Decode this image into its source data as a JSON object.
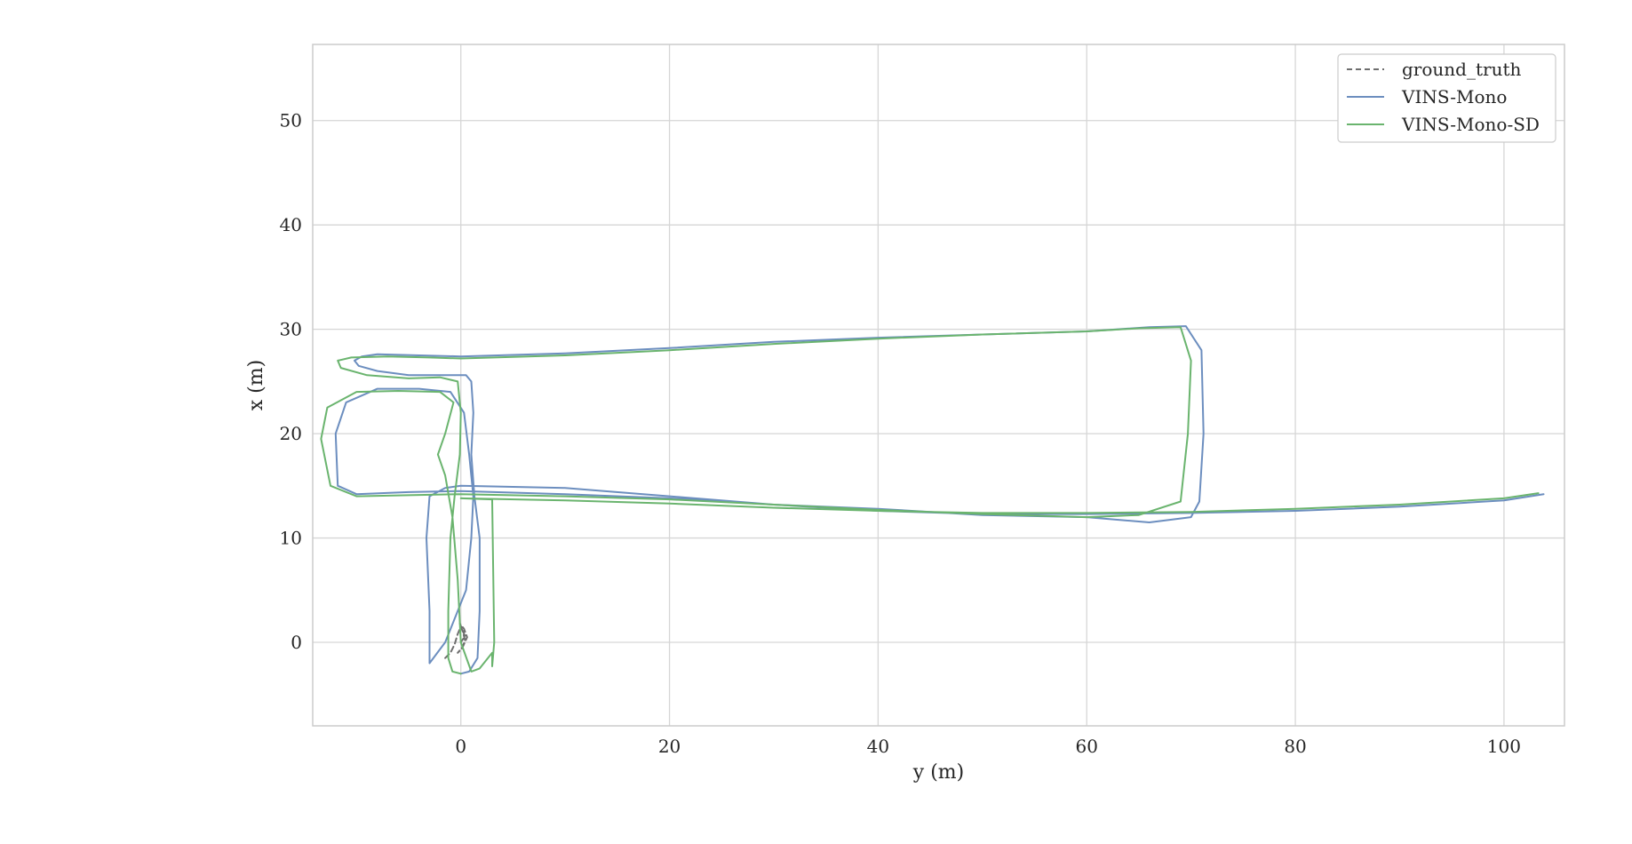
{
  "chart_data": {
    "type": "line",
    "xlabel": "y (m)",
    "ylabel": "x (m)",
    "xlim": [
      -14.2,
      105.8
    ],
    "ylim": [
      -8,
      57.3
    ],
    "xticks": [
      0,
      20,
      40,
      60,
      80,
      100
    ],
    "yticks": [
      0,
      10,
      20,
      30,
      40,
      50
    ],
    "grid": true,
    "legend": "top-right",
    "series": [
      {
        "name": "ground_truth",
        "color": "#6e6e6e",
        "dash": true,
        "x": [
          -1.5,
          -1.0,
          -0.6,
          -0.3,
          0.0,
          0.2,
          0.4,
          0.1,
          -0.3,
          0.2,
          0.6,
          0.3,
          -0.1,
          0.4,
          0.0
        ],
        "y": [
          -1.5,
          -1.0,
          -0.2,
          0.8,
          1.5,
          1.0,
          0.2,
          -0.6,
          -1.0,
          -0.4,
          0.5,
          1.3,
          1.8,
          0.6,
          0.0
        ]
      },
      {
        "name": "VINS-Mono",
        "color": "#6c8ebf",
        "dash": false,
        "x": [
          0.0,
          0.8,
          1.6,
          1.8,
          1.8,
          1.3,
          1.0,
          1.2,
          1.0,
          0.5,
          -1.5,
          -5.0,
          -8.0,
          -9.8,
          -10.2,
          -9.5,
          -8.0,
          -4.0,
          0.0,
          10.0,
          20.0,
          30.0,
          40.0,
          50.0,
          60.0,
          66.0,
          69.5,
          71.0,
          71.2,
          70.8,
          70.0,
          66.0,
          60.0,
          50.0,
          40.0,
          30.0,
          20.0,
          10.0,
          0.0,
          -5.0,
          -10.0,
          -11.8,
          -12.0,
          -11.0,
          -8.0,
          -4.0,
          -1.0,
          0.3,
          0.8,
          1.2,
          1.0,
          0.5,
          -1.5,
          -3.0,
          -3.0,
          -3.3,
          -3.0,
          -1.5,
          0.0,
          10.0,
          20.0,
          30.0,
          40.0,
          50.0,
          60.0,
          70.0,
          80.0,
          90.0,
          100.0,
          103.8
        ],
        "y": [
          -3.0,
          -2.8,
          -1.5,
          3.0,
          10.0,
          14.0,
          18.0,
          22.0,
          25.0,
          25.6,
          25.6,
          25.6,
          26.0,
          26.5,
          27.0,
          27.4,
          27.6,
          27.5,
          27.4,
          27.7,
          28.2,
          28.8,
          29.2,
          29.5,
          29.8,
          30.2,
          30.3,
          28.0,
          20.0,
          13.5,
          12.0,
          11.5,
          12.0,
          12.2,
          12.8,
          13.2,
          13.8,
          14.2,
          14.5,
          14.4,
          14.2,
          15.0,
          20.0,
          23.0,
          24.3,
          24.3,
          24.0,
          22.0,
          18.0,
          14.0,
          10.0,
          5.0,
          0.0,
          -2.0,
          3.0,
          10.0,
          14.0,
          14.8,
          15.0,
          14.8,
          14.0,
          13.2,
          12.6,
          12.3,
          12.3,
          12.4,
          12.6,
          13.0,
          13.6,
          14.2
        ]
      },
      {
        "name": "VINS-Mono-SD",
        "color": "#6ab46e",
        "dash": false,
        "x": [
          0.0,
          -0.8,
          -1.2,
          -1.2,
          -1.0,
          -0.6,
          -0.1,
          0.0,
          -0.3,
          -2.0,
          -5.0,
          -9.0,
          -11.5,
          -11.8,
          -10.5,
          -7.0,
          -3.0,
          0.0,
          10.0,
          20.0,
          30.0,
          40.0,
          50.0,
          60.0,
          65.0,
          69.0,
          70.0,
          69.7,
          69.0,
          65.0,
          60.0,
          50.0,
          40.0,
          30.0,
          20.0,
          10.0,
          0.0,
          -5.0,
          -10.0,
          -12.5,
          -13.4,
          -12.8,
          -10.0,
          -6.0,
          -2.0,
          -0.7,
          -1.5,
          -2.2,
          -1.5,
          -0.8,
          -0.3,
          0.0,
          1.0,
          1.8,
          3.0,
          3.0,
          3.2,
          3.0,
          0.0,
          10.0,
          20.0,
          30.0,
          40.0,
          50.0,
          60.0,
          70.0,
          80.0,
          90.0,
          100.0,
          103.3
        ],
        "y": [
          -3.0,
          -2.8,
          -1.5,
          3.0,
          10.0,
          14.0,
          18.0,
          22.0,
          25.0,
          25.4,
          25.3,
          25.6,
          26.3,
          27.0,
          27.3,
          27.4,
          27.3,
          27.2,
          27.5,
          28.0,
          28.6,
          29.1,
          29.5,
          29.8,
          30.1,
          30.2,
          27.0,
          20.0,
          13.5,
          12.2,
          12.0,
          12.3,
          12.7,
          13.2,
          13.7,
          14.0,
          14.2,
          14.1,
          14.0,
          15.0,
          19.5,
          22.5,
          24.0,
          24.1,
          24.0,
          23.0,
          20.0,
          18.0,
          16.0,
          12.0,
          6.0,
          0.0,
          -2.8,
          -2.5,
          -1.0,
          -2.3,
          0.0,
          13.7,
          13.8,
          13.6,
          13.3,
          12.9,
          12.6,
          12.4,
          12.4,
          12.5,
          12.8,
          13.2,
          13.8,
          14.3
        ]
      }
    ]
  }
}
